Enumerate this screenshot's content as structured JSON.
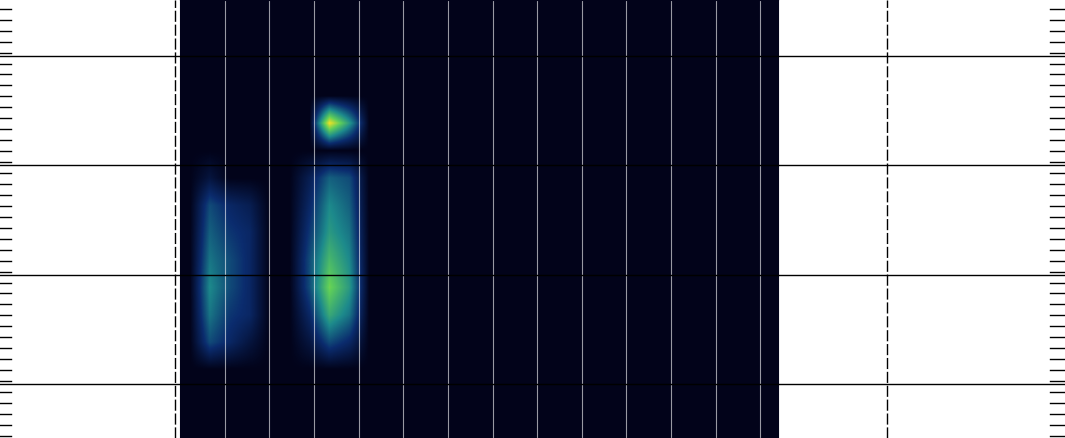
{
  "chart_data": {
    "type": "heatmap",
    "xlim": [
      0,
      30
    ],
    "ylim": [
      0,
      16
    ],
    "tick_labels": false,
    "cells": [
      [
        0,
        0,
        0,
        0,
        0,
        0,
        0,
        0,
        0,
        0,
        0,
        0,
        0,
        0,
        0,
        0,
        0,
        0,
        0,
        0,
        0,
        0,
        0,
        0,
        0,
        0,
        0,
        0,
        0,
        0
      ],
      [
        0,
        0,
        0,
        0,
        0,
        0,
        0,
        0,
        0,
        0,
        0,
        0,
        0,
        0,
        0,
        0,
        0,
        0,
        0,
        0,
        0,
        0,
        0,
        0,
        0,
        0,
        0,
        0,
        0,
        0
      ],
      [
        0,
        0,
        0,
        0,
        0,
        0,
        0,
        0,
        0,
        0,
        0,
        0,
        0,
        0,
        0,
        0,
        0,
        0,
        0,
        0,
        0,
        0,
        0,
        0,
        0,
        0,
        0,
        0,
        0,
        0
      ],
      [
        0,
        0,
        0,
        0,
        0,
        0,
        0,
        0,
        0,
        0,
        0,
        0,
        0,
        0,
        0,
        0,
        0,
        0,
        0,
        0,
        0,
        0,
        0,
        0,
        0,
        0,
        0,
        0,
        0,
        0
      ],
      [
        0,
        0,
        0,
        0,
        0,
        0,
        0,
        0.9,
        0.5,
        0,
        0,
        0,
        0,
        0,
        0,
        0,
        0,
        0,
        0,
        0,
        0,
        0,
        0,
        0,
        0,
        0,
        0,
        0,
        0,
        0
      ],
      [
        0,
        0,
        0,
        0,
        0,
        0,
        0,
        0,
        0,
        0,
        0,
        0,
        0,
        0,
        0,
        0,
        0,
        0,
        0,
        0,
        0,
        0,
        0,
        0,
        0,
        0,
        0,
        0,
        0,
        0
      ],
      [
        0,
        0.1,
        0,
        0,
        0,
        0,
        0.15,
        0.35,
        0.3,
        0,
        0,
        0,
        0,
        0,
        0,
        0,
        0,
        0,
        0,
        0,
        0,
        0,
        0,
        0,
        0,
        0,
        0,
        0,
        0,
        0
      ],
      [
        0,
        0.3,
        0.2,
        0.15,
        0,
        0,
        0.2,
        0.45,
        0.35,
        0,
        0,
        0,
        0,
        0,
        0,
        0,
        0,
        0,
        0,
        0,
        0,
        0,
        0,
        0,
        0,
        0,
        0,
        0,
        0,
        0
      ],
      [
        0,
        0.35,
        0.25,
        0.2,
        0,
        0,
        0.25,
        0.5,
        0.4,
        0,
        0,
        0,
        0,
        0,
        0,
        0,
        0,
        0,
        0,
        0,
        0,
        0,
        0,
        0,
        0,
        0,
        0,
        0,
        0,
        0
      ],
      [
        0,
        0.4,
        0.3,
        0.2,
        0,
        0,
        0.3,
        0.6,
        0.45,
        0,
        0,
        0,
        0,
        0,
        0,
        0,
        0,
        0,
        0,
        0,
        0,
        0,
        0,
        0,
        0,
        0,
        0,
        0,
        0,
        0
      ],
      [
        0,
        0.45,
        0.3,
        0.2,
        0,
        0,
        0.3,
        0.7,
        0.5,
        0,
        0,
        0,
        0,
        0,
        0,
        0,
        0,
        0,
        0,
        0,
        0,
        0,
        0,
        0,
        0,
        0,
        0,
        0,
        0,
        0
      ],
      [
        0,
        0.4,
        0.25,
        0.2,
        0,
        0,
        0.2,
        0.55,
        0.4,
        0,
        0,
        0,
        0,
        0,
        0,
        0,
        0,
        0,
        0,
        0,
        0,
        0,
        0,
        0,
        0,
        0,
        0,
        0,
        0,
        0
      ],
      [
        0,
        0.3,
        0.2,
        0.1,
        0,
        0,
        0.1,
        0.3,
        0.2,
        0,
        0,
        0,
        0,
        0,
        0,
        0,
        0,
        0,
        0,
        0,
        0,
        0,
        0,
        0,
        0,
        0,
        0,
        0,
        0,
        0
      ],
      [
        0,
        0,
        0,
        0,
        0,
        0,
        0,
        0,
        0,
        0,
        0,
        0,
        0,
        0,
        0,
        0,
        0,
        0,
        0,
        0,
        0,
        0,
        0,
        0,
        0,
        0,
        0,
        0,
        0,
        0
      ],
      [
        0,
        0,
        0,
        0,
        0,
        0,
        0,
        0,
        0,
        0,
        0,
        0,
        0,
        0,
        0,
        0,
        0,
        0,
        0,
        0,
        0,
        0,
        0,
        0,
        0,
        0,
        0,
        0,
        0,
        0
      ],
      [
        0,
        0,
        0,
        0,
        0,
        0,
        0,
        0,
        0,
        0,
        0,
        0,
        0,
        0,
        0,
        0,
        0,
        0,
        0,
        0,
        0,
        0,
        0,
        0,
        0,
        0,
        0,
        0,
        0,
        0
      ]
    ]
  }
}
